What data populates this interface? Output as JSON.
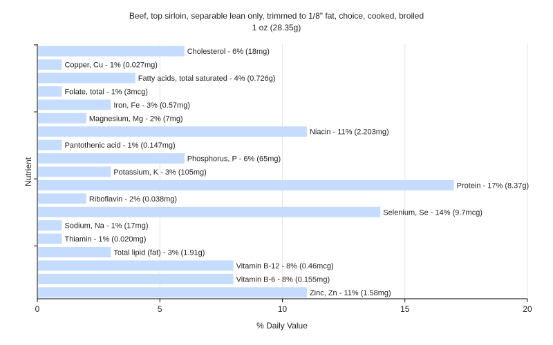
{
  "chart_data": {
    "type": "bar",
    "orientation": "horizontal",
    "title": "Beef, top sirloin, separable lean only, trimmed to 1/8\" fat, choice, cooked, broiled",
    "subtitle": "1 oz (28.35g)",
    "xlabel": "% Daily Value",
    "ylabel": "Nutrient",
    "xlim": [
      0,
      20
    ],
    "xticks": [
      "0",
      "5",
      "10",
      "15",
      "20"
    ],
    "grid": true,
    "bar_color": "#c5dcff",
    "categories": [
      "Cholesterol",
      "Copper, Cu",
      "Fatty acids, total saturated",
      "Folate, total",
      "Iron, Fe",
      "Magnesium, Mg",
      "Niacin",
      "Pantothenic acid",
      "Phosphorus, P",
      "Potassium, K",
      "Protein",
      "Riboflavin",
      "Selenium, Se",
      "Sodium, Na",
      "Thiamin",
      "Total lipid (fat)",
      "Vitamin B-12",
      "Vitamin B-6",
      "Zinc, Zn"
    ],
    "values": [
      6,
      1,
      4,
      1,
      3,
      2,
      11,
      1,
      6,
      3,
      17,
      2,
      14,
      1,
      1,
      3,
      8,
      8,
      11
    ],
    "labels": [
      "Cholesterol - 6% (18mg)",
      "Copper, Cu - 1% (0.027mg)",
      "Fatty acids, total saturated - 4% (0.726g)",
      "Folate, total - 1% (3mcg)",
      "Iron, Fe - 3% (0.57mg)",
      "Magnesium, Mg - 2% (7mg)",
      "Niacin - 11% (2.203mg)",
      "Pantothenic acid - 1% (0.147mg)",
      "Phosphorus, P - 6% (65mg)",
      "Potassium, K - 3% (105mg)",
      "Protein - 17% (8.37g)",
      "Riboflavin - 2% (0.038mg)",
      "Selenium, Se - 14% (9.7mcg)",
      "Sodium, Na - 1% (17mg)",
      "Thiamin - 1% (0.020mg)",
      "Total lipid (fat) - 3% (1.91g)",
      "Vitamin B-12 - 8% (0.46mcg)",
      "Vitamin B-6 - 8% (0.155mg)",
      "Zinc, Zn - 11% (1.58mg)"
    ]
  }
}
